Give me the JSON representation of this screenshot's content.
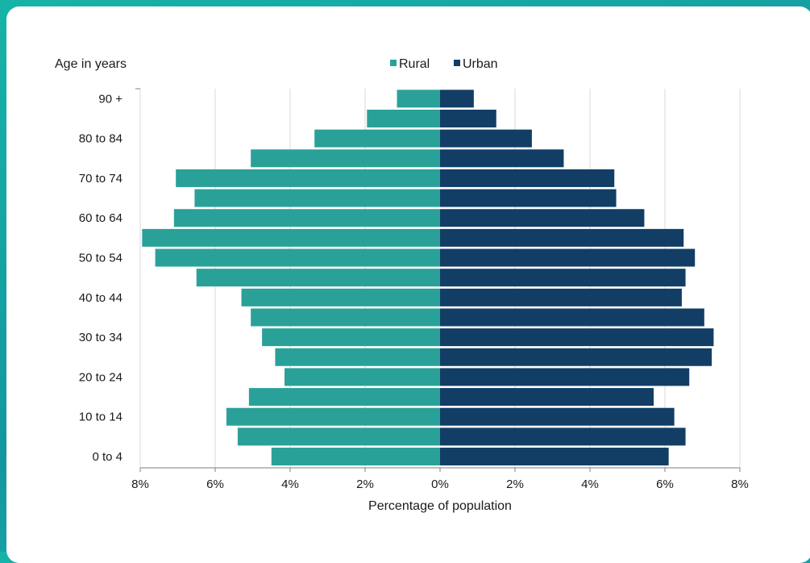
{
  "chart_data": {
    "type": "bar",
    "orientation": "horizontal",
    "layout": "population-pyramid",
    "y_axis_title": "Age in years",
    "xlabel": "Percentage of population",
    "xlim": [
      -8,
      8
    ],
    "x_tick_labels": [
      "8%",
      "6%",
      "4%",
      "2%",
      "0%",
      "2%",
      "4%",
      "6%",
      "8%"
    ],
    "categories": [
      "90 +",
      "85 to 89",
      "80 to 84",
      "75 to 79",
      "70 to 74",
      "65 to 69",
      "60 to 64",
      "55 to 59",
      "50 to 54",
      "45 to 49",
      "40 to 44",
      "35 to 39",
      "30 to 34",
      "25 to 29",
      "20 to 24",
      "15 to 19",
      "10 to 14",
      "5 to 9",
      "0 to 4"
    ],
    "visible_category_labels": [
      "90 +",
      "80 to 84",
      "70 to 74",
      "60 to 64",
      "50 to 54",
      "40 to 44",
      "30 to 34",
      "20 to 24",
      "10 to 14",
      "0 to 4"
    ],
    "series": [
      {
        "name": "Rural",
        "color": "#2aa198",
        "values": [
          1.15,
          1.95,
          3.35,
          5.05,
          7.05,
          6.55,
          7.1,
          7.95,
          7.6,
          6.5,
          5.3,
          5.05,
          4.75,
          4.4,
          4.15,
          5.1,
          5.7,
          5.4,
          4.5
        ]
      },
      {
        "name": "Urban",
        "color": "#123e66",
        "values": [
          0.9,
          1.5,
          2.45,
          3.3,
          4.65,
          4.7,
          5.45,
          6.5,
          6.8,
          6.55,
          6.45,
          7.05,
          7.3,
          7.25,
          6.65,
          5.7,
          6.25,
          6.55,
          6.1
        ]
      }
    ],
    "legend_position": "top-center",
    "grid": "vertical"
  }
}
